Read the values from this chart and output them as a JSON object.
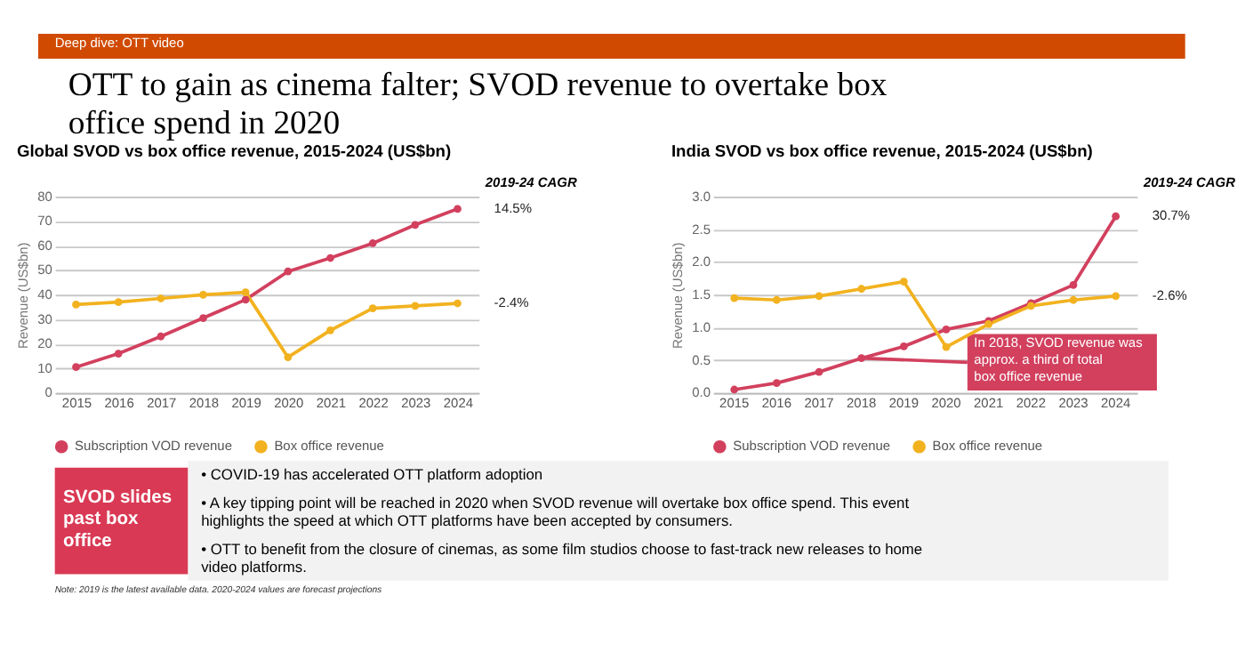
{
  "chart_data": [
    {
      "type": "other",
      "title": "OTT to gain as cinema falter; SVOD revenue to overtake box office spend in 2020",
      "annotations": [
        "Deep dive: OTT video"
      ]
    },
    {
      "type": "line",
      "title": "Global SVOD vs box office revenue, 2015-2024 (US$bn)",
      "ylabel": "Revenue (US$bn)",
      "categories": [
        "2015",
        "2016",
        "2017",
        "2018",
        "2019",
        "2020",
        "2021",
        "2022",
        "2023",
        "2024"
      ],
      "series": [
        {
          "name": "Subscription VOD revenue",
          "color": "#d2405e",
          "values": [
            10.5,
            16,
            23,
            30.5,
            38,
            49.5,
            55,
            61,
            68.5,
            75
          ]
        },
        {
          "name": "Box office revenue",
          "color": "#f2b21f",
          "values": [
            36,
            37,
            38.5,
            40,
            41,
            14.5,
            25.5,
            34.5,
            35.5,
            36.5
          ]
        }
      ],
      "ylim": [
        0,
        80
      ],
      "yticks": [
        0,
        10,
        20,
        30,
        40,
        50,
        60,
        70,
        80
      ],
      "grid": "y",
      "legend": "bottom",
      "marker": "circle",
      "line_style": "solid",
      "annotations": [
        "2019-24 CAGR",
        {
          "text": "14.5%",
          "x": "2024",
          "y": 75
        },
        {
          "text": "-2.4%",
          "x": "2024",
          "y": 36.5
        }
      ]
    },
    {
      "type": "line",
      "title": "India SVOD vs box office revenue, 2015-2024 (US$bn)",
      "ylabel": "Revenue (US$bn)",
      "categories": [
        "2015",
        "2016",
        "2017",
        "2018",
        "2019",
        "2020",
        "2021",
        "2022",
        "2023",
        "2024"
      ],
      "series": [
        {
          "name": "Subscription VOD revenue",
          "color": "#d2405e",
          "values": [
            0.05,
            0.15,
            0.32,
            0.53,
            0.71,
            0.97,
            1.1,
            1.37,
            1.65,
            2.7
          ]
        },
        {
          "name": "Box office revenue",
          "color": "#f2b21f",
          "values": [
            1.45,
            1.42,
            1.48,
            1.59,
            1.7,
            0.7,
            1.05,
            1.33,
            1.42,
            1.48
          ]
        }
      ],
      "ylim": [
        0,
        3
      ],
      "yticks": [
        {
          "value": 0,
          "label": "0.0"
        },
        {
          "value": 0.5,
          "label": "0.5"
        },
        {
          "value": 1,
          "label": "1.0"
        },
        {
          "value": 1.5,
          "label": "1.5"
        },
        {
          "value": 2,
          "label": "2.0"
        },
        {
          "value": 2.5,
          "label": "2.5"
        },
        {
          "value": 3,
          "label": "3.0"
        }
      ],
      "grid": "y",
      "legend": "bottom",
      "marker": "circle",
      "line_style": "solid",
      "annotations": [
        "2019-24 CAGR",
        {
          "text": "30.7%",
          "x": "2024",
          "y": 2.7
        },
        {
          "text": "-2.6%",
          "x": "2024",
          "y": 1.48
        },
        {
          "text": "In 2018, SVOD revenue was approx. a third of total box office revenue",
          "x": "2018",
          "y": 0.53
        }
      ]
    },
    {
      "type": "other",
      "title": "SVOD slides past box office",
      "annotations": [
        "• COVID-19 has accelerated OTT platform adoption",
        "• A key tipping point will be reached in 2020 when SVOD revenue will overtake box office spend. This event highlights the speed at which OTT platforms have been accepted by consumers.",
        "• OTT to benefit from the closure of cinemas, as some film studios choose to fast-track new releases to home video platforms.",
        "Note: 2019 is the latest available data. 2020-2024 values are forecast projections"
      ]
    }
  ]
}
